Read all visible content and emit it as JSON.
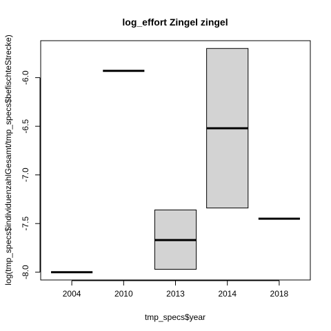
{
  "chart_data": {
    "type": "box",
    "title": "log_effort Zingel zingel",
    "xlabel": "tmp_specs$year",
    "ylabel": "log(tmp_specs$individuenzahlGesamt/tmp_specs$befischteStrecke)",
    "categories": [
      "2004",
      "2010",
      "2013",
      "2014",
      "2018"
    ],
    "boxes": [
      {
        "category": "2004",
        "lower": -8.0,
        "median": -8.0,
        "upper": -8.0
      },
      {
        "category": "2010",
        "lower": -5.93,
        "median": -5.93,
        "upper": -5.93
      },
      {
        "category": "2013",
        "lower": -7.97,
        "median": -7.67,
        "upper": -7.36
      },
      {
        "category": "2014",
        "lower": -7.34,
        "median": -6.52,
        "upper": -5.7
      },
      {
        "category": "2018",
        "lower": -7.45,
        "median": -7.45,
        "upper": -7.45
      }
    ],
    "yticks": [
      -8.0,
      -7.5,
      -7.0,
      -6.5,
      -6.0
    ],
    "ytick_labels": [
      "-8.0",
      "-7.5",
      "-7.0",
      "-6.5",
      "-6.0"
    ],
    "ylim": [
      -8.08,
      -5.62
    ],
    "box_fill": "#d3d3d3",
    "grid": false,
    "legend": "none"
  }
}
